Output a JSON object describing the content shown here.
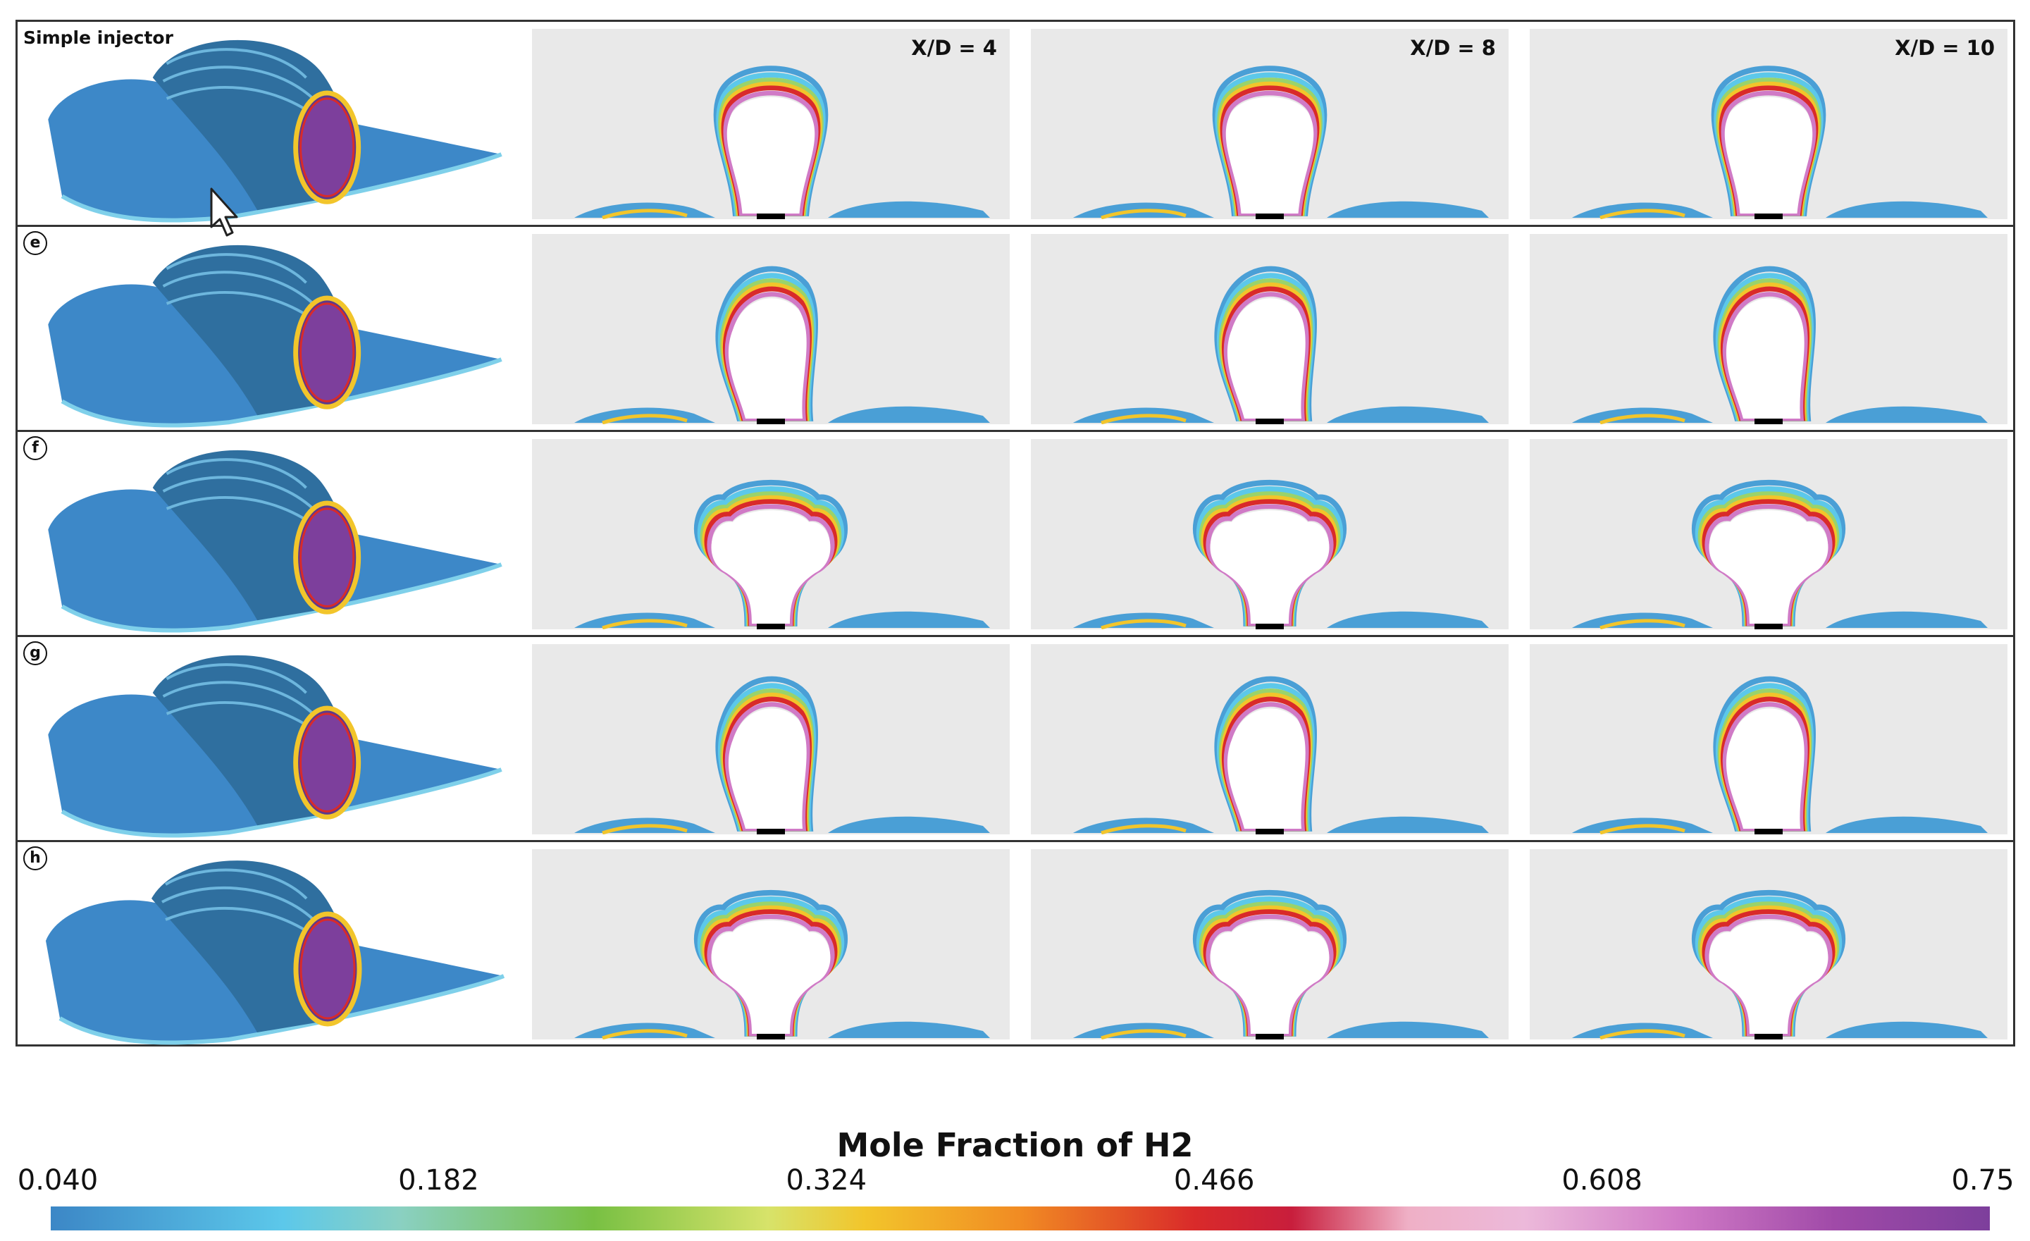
{
  "figure": {
    "rows": [
      {
        "label": "Simple injector",
        "badge": ""
      },
      {
        "label": "",
        "badge": "e"
      },
      {
        "label": "",
        "badge": "f"
      },
      {
        "label": "",
        "badge": "g"
      },
      {
        "label": "",
        "badge": "h"
      }
    ],
    "columns": [
      "X/D = 4",
      "X/D = 8",
      "X/D = 10"
    ]
  },
  "colorbar": {
    "title": "Mole Fraction of H2",
    "ticks": [
      "0.040",
      "0.182",
      "0.324",
      "0.466",
      "0.608",
      "0.75"
    ],
    "min": 0.04,
    "max": 0.75,
    "colors": [
      "#3c87c6",
      "#5cc8ea",
      "#78c043",
      "#f2c52b",
      "#d92a2a",
      "#ecb9da",
      "#7d3f9c"
    ]
  },
  "colors": {
    "background_panel": "#e9e9e9",
    "plume_outer": "#4a9fd6",
    "plume_inner": "#ffffff",
    "surface": "#3d88c8"
  },
  "icons": {
    "cursor": "mouse-pointer-icon"
  }
}
